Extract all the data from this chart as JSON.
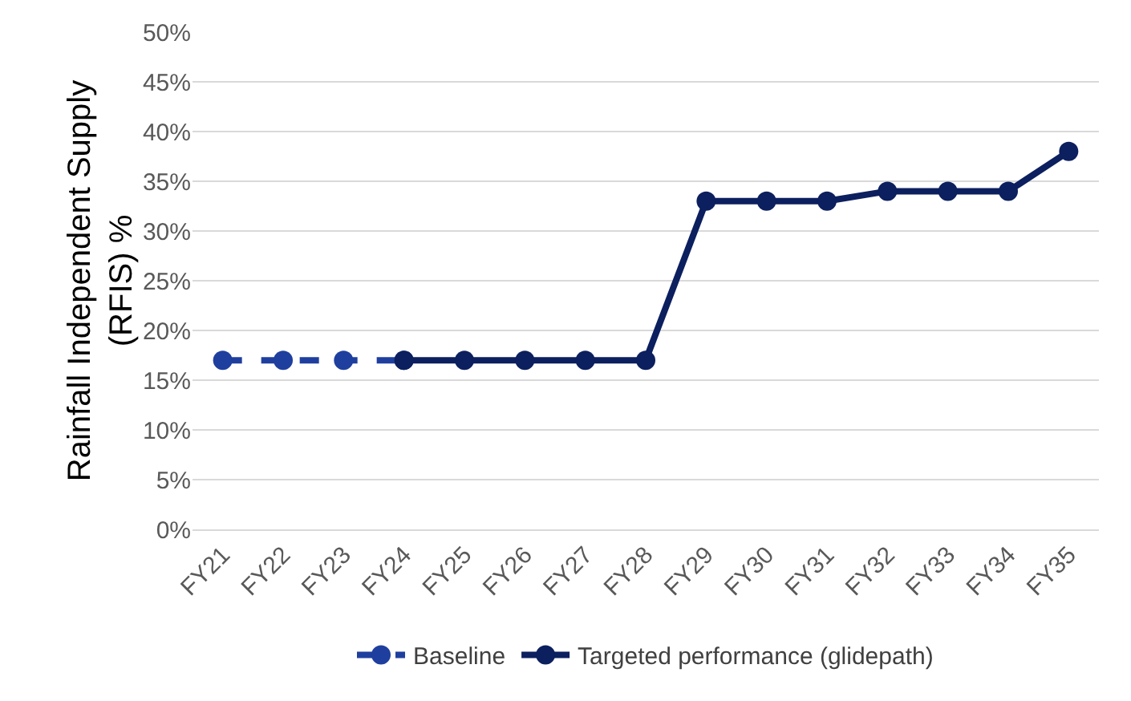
{
  "chart_data": {
    "type": "line",
    "ylabel": "Rainfall Independent Supply\n(RFIS) %",
    "categories": [
      "FY21",
      "FY22",
      "FY23",
      "FY24",
      "FY25",
      "FY26",
      "FY27",
      "FY28",
      "FY29",
      "FY30",
      "FY31",
      "FY32",
      "FY33",
      "FY34",
      "FY35"
    ],
    "series": [
      {
        "name": "Baseline",
        "color": "#1f3f9f",
        "line_style": "dashed",
        "values": [
          17,
          17,
          17,
          17,
          null,
          null,
          null,
          null,
          null,
          null,
          null,
          null,
          null,
          null,
          null
        ]
      },
      {
        "name": "Targeted performance (glidepath)",
        "color": "#0c1f5e",
        "line_style": "solid",
        "values": [
          null,
          null,
          null,
          17,
          17,
          17,
          17,
          17,
          33,
          33,
          33,
          34,
          34,
          34,
          38
        ]
      }
    ],
    "ylim": [
      0,
      50
    ],
    "yticks": [
      {
        "value": 0,
        "label": "0%"
      },
      {
        "value": 5,
        "label": "5%"
      },
      {
        "value": 10,
        "label": "10%"
      },
      {
        "value": 15,
        "label": "15%"
      },
      {
        "value": 20,
        "label": "20%"
      },
      {
        "value": 25,
        "label": "25%"
      },
      {
        "value": 30,
        "label": "30%"
      },
      {
        "value": 35,
        "label": "35%"
      },
      {
        "value": 40,
        "label": "40%"
      },
      {
        "value": 45,
        "label": "45%"
      },
      {
        "value": 50,
        "label": "50%"
      }
    ],
    "grid": "y",
    "legend": "bottom",
    "marker": "circle"
  }
}
